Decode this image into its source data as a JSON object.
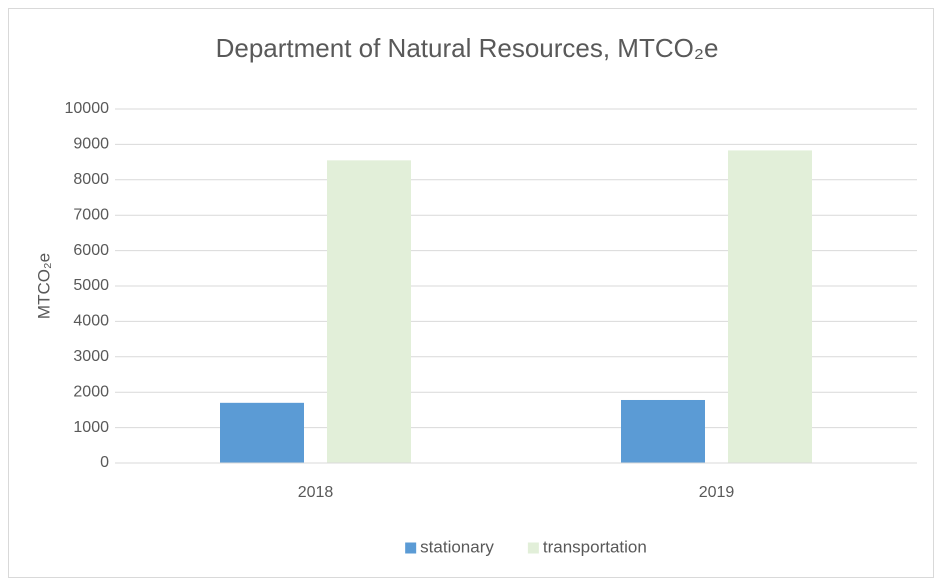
{
  "chart_data": {
    "type": "bar",
    "title": "Department of Natural Resources, MTCO₂e",
    "y_label": "MTCO₂e",
    "categories": [
      "2018",
      "2019"
    ],
    "series": [
      {
        "name": "stationary",
        "color": "#5b9bd5",
        "values": [
          1700,
          1780
        ]
      },
      {
        "name": "transportation",
        "color": "#e2efd9",
        "values": [
          8550,
          8830
        ]
      }
    ],
    "ylim": [
      0,
      10000
    ],
    "yticks": [
      0,
      1000,
      2000,
      3000,
      4000,
      5000,
      6000,
      7000,
      8000,
      9000,
      10000
    ],
    "grid": true,
    "legend": "bottom"
  }
}
